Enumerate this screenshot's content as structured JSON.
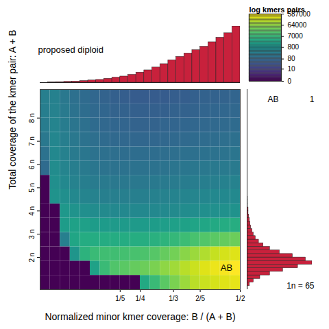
{
  "chart_data": {
    "type": "heatmap",
    "title": "proposed diploid",
    "x_label": "Normalized minor kmer coverage: B / (A + B)",
    "y_label": "Total coverage of the kmer pair: A + B",
    "xlim": [
      0,
      0.5
    ],
    "xticks": [
      {
        "value": 0.2,
        "label": "1/5"
      },
      {
        "value": 0.25,
        "label": "1/4"
      },
      {
        "value": 0.3333,
        "label": "1/3"
      },
      {
        "value": 0.4,
        "label": "2/5"
      },
      {
        "value": 0.5,
        "label": "1/2"
      }
    ],
    "ylim": [
      40,
      600
    ],
    "yticks": [
      {
        "value": 130,
        "label": "2 n"
      },
      {
        "value": 195,
        "label": "3 n"
      },
      {
        "value": 260,
        "label": "4 n"
      },
      {
        "value": 325,
        "label": "5 n"
      },
      {
        "value": 390,
        "label": "6 n"
      },
      {
        "value": 455,
        "label": "7 n"
      },
      {
        "value": 520,
        "label": "8 n"
      }
    ],
    "annotation": "AB",
    "cells": {
      "x_bins": [
        0,
        0.025,
        0.05,
        0.075,
        0.1,
        0.125,
        0.15,
        0.175,
        0.2,
        0.225,
        0.25,
        0.275,
        0.3,
        0.325,
        0.35,
        0.375,
        0.4,
        0.425,
        0.45,
        0.475,
        0.5
      ],
      "y_bins": [
        40,
        80,
        120,
        160,
        200,
        240,
        280,
        320,
        360,
        400,
        440,
        480,
        520,
        560,
        600
      ],
      "counts": [
        [
          0,
          0,
          0,
          0,
          0,
          0,
          0,
          0,
          0,
          0,
          3000,
          8000,
          20000,
          40000,
          80000,
          150000,
          200000,
          250000,
          300000,
          350000
        ],
        [
          0,
          0,
          0,
          0,
          0,
          2000,
          8000,
          15000,
          20000,
          25000,
          30000,
          40000,
          60000,
          90000,
          140000,
          200000,
          300000,
          400000,
          500000,
          587000
        ],
        [
          0,
          0,
          0,
          1000,
          5000,
          8000,
          10000,
          10000,
          11000,
          12000,
          14000,
          18000,
          25000,
          35000,
          55000,
          80000,
          120000,
          180000,
          250000,
          300000
        ],
        [
          0,
          0,
          300,
          2500,
          3500,
          3500,
          3500,
          3500,
          3500,
          3800,
          4000,
          4500,
          5500,
          7000,
          9000,
          12000,
          16000,
          20000,
          25000,
          30000
        ],
        [
          0,
          0,
          1500,
          2000,
          1800,
          1500,
          1400,
          1300,
          1300,
          1300,
          1400,
          1500,
          1600,
          1800,
          2000,
          2300,
          2600,
          3000,
          3500,
          4000
        ],
        [
          0,
          0,
          1200,
          900,
          700,
          600,
          550,
          500,
          500,
          500,
          500,
          500,
          520,
          550,
          600,
          650,
          700,
          750,
          800,
          850
        ],
        [
          0,
          900,
          700,
          500,
          400,
          350,
          300,
          300,
          300,
          300,
          300,
          320,
          350,
          380,
          400,
          420,
          450,
          480,
          500,
          520
        ],
        [
          0,
          700,
          500,
          350,
          280,
          240,
          220,
          200,
          200,
          200,
          200,
          210,
          220,
          240,
          250,
          260,
          280,
          300,
          320,
          340
        ],
        [
          100,
          600,
          400,
          280,
          220,
          180,
          160,
          150,
          150,
          150,
          150,
          150,
          160,
          170,
          180,
          190,
          200,
          210,
          220,
          230
        ],
        [
          150,
          500,
          330,
          230,
          180,
          150,
          130,
          120,
          110,
          110,
          110,
          110,
          115,
          120,
          125,
          130,
          140,
          150,
          160,
          170
        ],
        [
          200,
          450,
          280,
          200,
          150,
          120,
          100,
          90,
          85,
          80,
          80,
          80,
          85,
          90,
          95,
          100,
          105,
          110,
          120,
          130
        ],
        [
          250,
          400,
          250,
          170,
          130,
          100,
          85,
          75,
          70,
          65,
          65,
          65,
          70,
          70,
          75,
          80,
          85,
          90,
          95,
          100
        ],
        [
          280,
          350,
          220,
          150,
          110,
          90,
          75,
          65,
          60,
          55,
          55,
          55,
          55,
          60,
          60,
          65,
          70,
          75,
          80,
          85
        ],
        [
          300,
          320,
          200,
          130,
          100,
          80,
          65,
          55,
          50,
          45,
          45,
          45,
          45,
          50,
          50,
          55,
          60,
          60,
          65,
          70
        ]
      ]
    },
    "colorbar": {
      "title": "log kmers pairs",
      "log": true,
      "color": "viridis",
      "range": [
        0,
        587000
      ],
      "ticks": [
        0,
        10,
        80,
        800,
        7000,
        64000,
        587000
      ]
    },
    "x_histogram": {
      "bins": [
        0,
        0.02,
        0.04,
        0.06,
        0.08,
        0.1,
        0.12,
        0.14,
        0.16,
        0.18,
        0.2,
        0.22,
        0.24,
        0.26,
        0.28,
        0.3,
        0.32,
        0.34,
        0.36,
        0.38,
        0.4,
        0.42,
        0.44,
        0.46,
        0.48,
        0.5
      ],
      "counts": [
        0,
        0.5,
        1,
        1.5,
        2,
        3,
        4,
        5,
        7,
        9,
        11,
        14,
        18,
        22,
        27,
        33,
        40,
        46,
        52,
        58,
        64,
        72,
        80,
        88,
        100
      ],
      "color": "#c8213c",
      "tick_labels": false
    },
    "y_histogram": {
      "bins": [
        40,
        50,
        60,
        70,
        80,
        90,
        100,
        110,
        120,
        130,
        140,
        150,
        160,
        170,
        180,
        190,
        200,
        210,
        220,
        230,
        240,
        250,
        260,
        270,
        280,
        290,
        300,
        320,
        340,
        360,
        380,
        400,
        420,
        440,
        460,
        480,
        500,
        520,
        540,
        560,
        580,
        600
      ],
      "counts": [
        1,
        4,
        10,
        20,
        35,
        55,
        78,
        100,
        90,
        70,
        50,
        35,
        25,
        18,
        13,
        10,
        8,
        6,
        5,
        4,
        3,
        2,
        2,
        1,
        1,
        1,
        0.5,
        0.5,
        0.5,
        0.5,
        0.5,
        0.5,
        0.5,
        0.5,
        0.5,
        0.5,
        0.5,
        0.5,
        0.5,
        0.5,
        0.5
      ],
      "color": "#c8213c",
      "tick_labels": false
    },
    "peaks": [
      {
        "label": "AB",
        "value": 1
      }
    ],
    "note": "1n = 65"
  }
}
